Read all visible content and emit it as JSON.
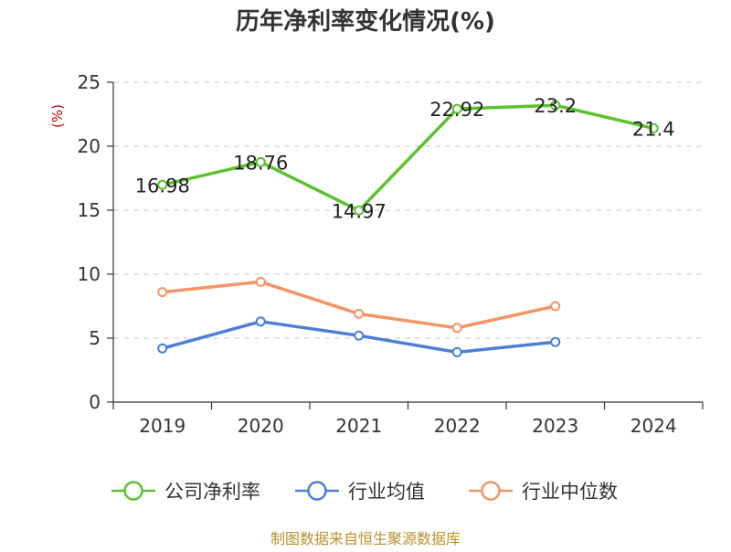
{
  "chart_data": {
    "type": "line",
    "title": "历年净利率变化情况(%)",
    "ylabel": "(%)",
    "xlabel": "",
    "categories": [
      "2019",
      "2020",
      "2021",
      "2022",
      "2023",
      "2024"
    ],
    "ylim": [
      0,
      25
    ],
    "yticks": [
      0,
      5,
      10,
      15,
      20,
      25
    ],
    "grid": true,
    "legend_position": "bottom",
    "series": [
      {
        "name": "公司净利率",
        "color": "#5cc22d",
        "show_labels": true,
        "values": [
          16.98,
          18.76,
          14.97,
          22.92,
          23.2,
          21.4
        ],
        "labels": [
          "16.98",
          "18.76",
          "14.97",
          "22.92",
          "23.2",
          "21.4"
        ]
      },
      {
        "name": "行业均值",
        "color": "#4e7fd8",
        "show_labels": false,
        "values": [
          4.2,
          6.3,
          5.2,
          3.9,
          4.7,
          null
        ]
      },
      {
        "name": "行业中位数",
        "color": "#f59464",
        "show_labels": false,
        "values": [
          8.6,
          9.4,
          6.9,
          5.8,
          7.5,
          null
        ]
      }
    ],
    "unit_color": "#cc0000",
    "source": "制图数据来自恒生聚源数据库",
    "source_color": "#b8912e"
  }
}
